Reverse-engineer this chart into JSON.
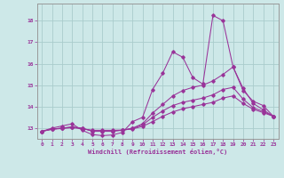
{
  "xlabel": "Windchill (Refroidissement éolien,°C)",
  "bg_color": "#cde8e8",
  "grid_color": "#aacccc",
  "line_color": "#993399",
  "spine_color": "#999999",
  "xlim": [
    -0.5,
    23.5
  ],
  "ylim": [
    12.5,
    18.8
  ],
  "yticks": [
    13,
    14,
    15,
    16,
    17,
    18
  ],
  "xticks": [
    0,
    1,
    2,
    3,
    4,
    5,
    6,
    7,
    8,
    9,
    10,
    11,
    12,
    13,
    14,
    15,
    16,
    17,
    18,
    19,
    20,
    21,
    22,
    23
  ],
  "lines": [
    {
      "x": [
        0,
        1,
        2,
        3,
        4,
        5,
        6,
        7,
        8,
        9,
        10,
        11,
        12,
        13,
        14,
        15,
        16,
        17,
        18,
        19,
        20,
        21,
        22,
        23
      ],
      "y": [
        12.85,
        13.0,
        13.1,
        13.2,
        12.9,
        12.7,
        12.65,
        12.68,
        12.8,
        13.3,
        13.5,
        14.8,
        15.55,
        16.55,
        16.3,
        15.35,
        15.05,
        18.25,
        18.0,
        15.85,
        14.85,
        14.15,
        13.85,
        13.55
      ]
    },
    {
      "x": [
        0,
        1,
        2,
        3,
        4,
        5,
        6,
        7,
        8,
        9,
        10,
        11,
        12,
        13,
        14,
        15,
        16,
        17,
        18,
        19,
        20,
        21,
        22,
        23
      ],
      "y": [
        12.85,
        12.95,
        13.0,
        13.05,
        13.0,
        12.85,
        12.85,
        12.85,
        12.9,
        13.0,
        13.2,
        13.7,
        14.1,
        14.5,
        14.75,
        14.9,
        15.0,
        15.2,
        15.5,
        15.85,
        14.75,
        14.25,
        14.05,
        13.55
      ]
    },
    {
      "x": [
        0,
        1,
        2,
        3,
        4,
        5,
        6,
        7,
        8,
        9,
        10,
        11,
        12,
        13,
        14,
        15,
        16,
        17,
        18,
        19,
        20,
        21,
        22,
        23
      ],
      "y": [
        12.85,
        12.95,
        13.0,
        13.05,
        12.98,
        12.88,
        12.88,
        12.88,
        12.9,
        12.98,
        13.15,
        13.5,
        13.8,
        14.05,
        14.2,
        14.3,
        14.4,
        14.55,
        14.8,
        14.9,
        14.35,
        13.95,
        13.78,
        13.55
      ]
    },
    {
      "x": [
        0,
        1,
        2,
        3,
        4,
        5,
        6,
        7,
        8,
        9,
        10,
        11,
        12,
        13,
        14,
        15,
        16,
        17,
        18,
        19,
        20,
        21,
        22,
        23
      ],
      "y": [
        12.85,
        12.95,
        12.98,
        13.02,
        12.97,
        12.9,
        12.9,
        12.9,
        12.91,
        12.96,
        13.08,
        13.3,
        13.55,
        13.75,
        13.9,
        14.0,
        14.1,
        14.2,
        14.4,
        14.5,
        14.15,
        13.88,
        13.72,
        13.55
      ]
    }
  ]
}
